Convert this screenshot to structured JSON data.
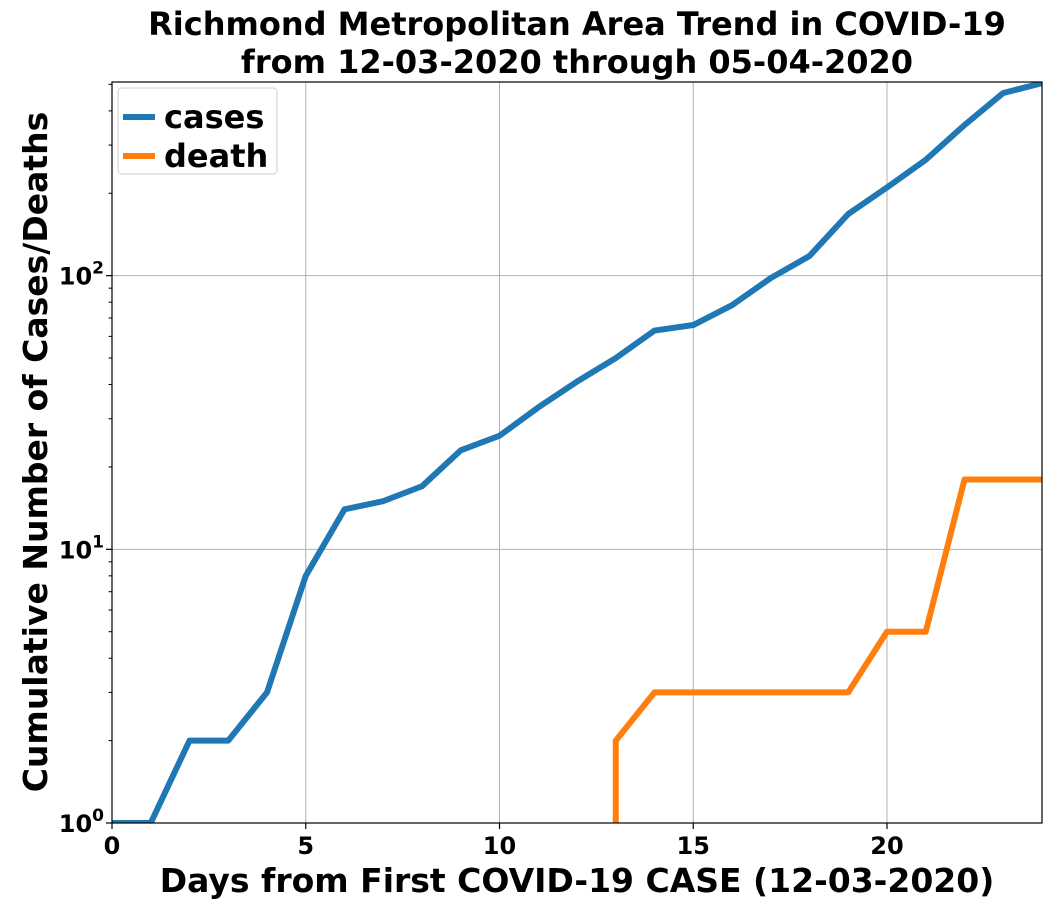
{
  "chart_data": {
    "type": "line",
    "title": "Richmond Metropolitan Area Trend in COVID-19",
    "subtitle": "from 12-03-2020 through 05-04-2020",
    "xlabel": "Days from First COVID-19 CASE (12-03-2020)",
    "ylabel": "Cumulative Number of Cases/Deaths",
    "xlim": [
      0,
      24
    ],
    "ylim": [
      1,
      510
    ],
    "yscale": "log",
    "grid": true,
    "legend_position": "top-left",
    "x_ticks": [
      0,
      5,
      10,
      15,
      20
    ],
    "y_ticks": [
      {
        "value": 1,
        "base": "10",
        "exp": "0"
      },
      {
        "value": 10,
        "base": "10",
        "exp": "1"
      },
      {
        "value": 100,
        "base": "10",
        "exp": "2"
      }
    ],
    "series": [
      {
        "name": "cases",
        "color": "#1f77b4",
        "x": [
          0,
          1,
          2,
          3,
          4,
          5,
          6,
          7,
          8,
          9,
          10,
          11,
          12,
          13,
          14,
          15,
          16,
          17,
          18,
          19,
          20,
          21,
          22,
          23,
          24
        ],
        "y": [
          1,
          1,
          2,
          2,
          3,
          8,
          14,
          15,
          17,
          23,
          26,
          33,
          41,
          50,
          63,
          66,
          78,
          98,
          118,
          168,
          210,
          265,
          355,
          465,
          505
        ]
      },
      {
        "name": "death",
        "color": "#ff7f0e",
        "x": [
          13,
          13,
          14,
          15,
          16,
          17,
          18,
          19,
          20,
          21,
          22,
          23,
          24
        ],
        "y": [
          1,
          2,
          3,
          3,
          3,
          3,
          3,
          3,
          5,
          5,
          18,
          18,
          18
        ]
      }
    ]
  }
}
